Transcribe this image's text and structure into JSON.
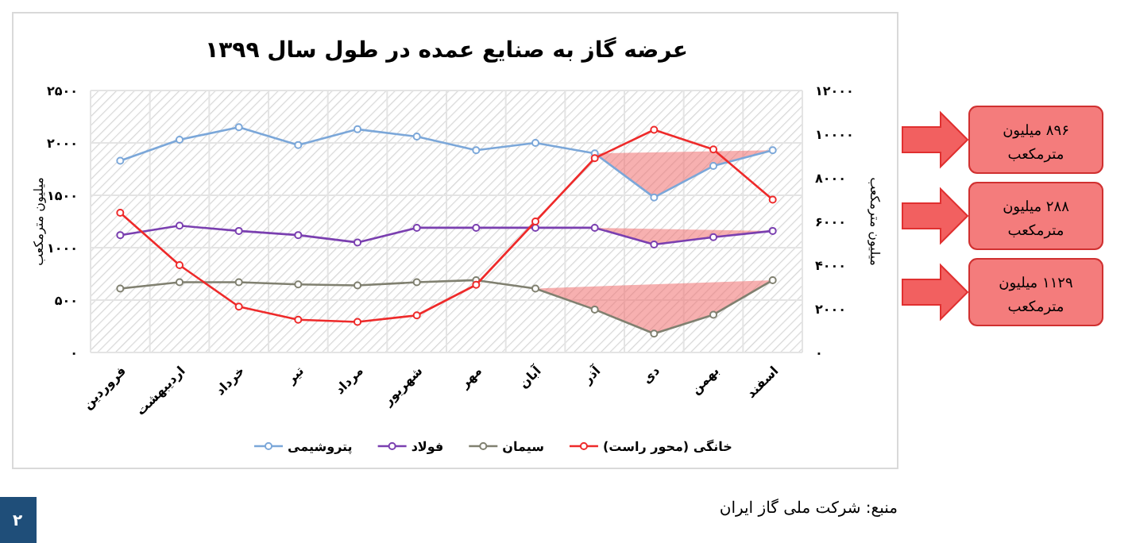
{
  "chart_data": {
    "type": "line",
    "title": "عرضه گاز به صنایع عمده در طول سال ۱۳۹۹",
    "ylabel": "میلیون مترمکعب",
    "y2label": "میلیون مترمکعب",
    "categories": [
      "فروردین",
      "اردیبهشت",
      "خرداد",
      "تیر",
      "مرداد",
      "شهریور",
      "مهر",
      "آبان",
      "آذر",
      "دی",
      "بهمن",
      "اسفند"
    ],
    "series": [
      {
        "name": "پتروشیمی",
        "color": "#7ba7d9",
        "values": [
          1830,
          2030,
          2150,
          1980,
          2130,
          2060,
          1930,
          2000,
          1900,
          1480,
          1780,
          1930
        ]
      },
      {
        "name": "فولاد",
        "color": "#7a3fb0",
        "values": [
          1120,
          1210,
          1160,
          1120,
          1050,
          1190,
          1190,
          1190,
          1190,
          1030,
          1100,
          1160
        ]
      },
      {
        "name": "سیمان",
        "color": "#808070",
        "values": [
          610,
          670,
          670,
          650,
          640,
          670,
          690,
          610,
          410,
          180,
          360,
          690
        ]
      },
      {
        "name": "خانگی (محور راست)",
        "color": "#ee2a2a",
        "axis": "y2",
        "values": [
          6400,
          4000,
          2100,
          1500,
          1400,
          1700,
          3100,
          6000,
          8900,
          10200,
          9300,
          7000
        ]
      }
    ],
    "ylim": [
      0,
      2500
    ],
    "yticks": [
      {
        "value": 0,
        "label": "۰"
      },
      {
        "value": 500,
        "label": "۵۰۰"
      },
      {
        "value": 1000,
        "label": "۱۰۰۰"
      },
      {
        "value": 1500,
        "label": "۱۵۰۰"
      },
      {
        "value": 2000,
        "label": "۲۰۰۰"
      },
      {
        "value": 2500,
        "label": "۲۵۰۰"
      }
    ],
    "y2lim": [
      0,
      12000
    ],
    "y2ticks": [
      {
        "value": 0,
        "label": "۰"
      },
      {
        "value": 2000,
        "label": "۲۰۰۰"
      },
      {
        "value": 4000,
        "label": "۴۰۰۰"
      },
      {
        "value": 6000,
        "label": "۶۰۰۰"
      },
      {
        "value": 8000,
        "label": "۸۰۰۰"
      },
      {
        "value": 10000,
        "label": "۱۰۰۰۰"
      },
      {
        "value": 12000,
        "label": "۱۲۰۰۰"
      }
    ],
    "grid": true,
    "legend": "bottom",
    "marker": "circle",
    "line_style": "solid",
    "annotations": [
      "۸۹۶ میلیون مترمکعب",
      "۲۸۸ میلیون مترمکعب",
      "۱۱۲۹ میلیون مترمکعب",
      "منبع: شرکت ملی گاز ایران",
      "۲"
    ]
  }
}
